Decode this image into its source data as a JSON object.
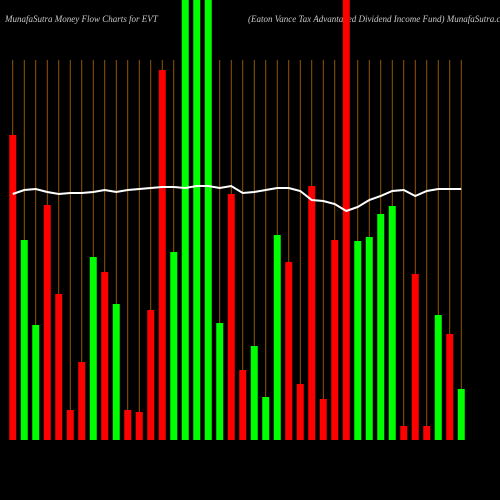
{
  "chart_data": {
    "type": "bar",
    "title": "MunafaSutra  Money Flow  Charts for EVT",
    "subtitle": "(Eaton  Vance   Tax Advantaged Dividend Income   Fund) MunafaSutra.com",
    "categories": [
      null,
      null,
      null,
      null,
      null,
      null,
      null,
      null,
      null,
      null,
      null,
      null,
      null,
      null,
      null,
      null,
      null,
      null,
      null,
      null,
      null,
      null,
      null,
      null,
      null,
      null,
      null,
      null,
      null,
      null,
      null,
      null,
      null,
      null,
      null,
      null,
      null,
      null,
      null,
      null
    ],
    "ylim": [
      0,
      440
    ],
    "grid": true,
    "grid_color": "#b86a00",
    "series": [
      {
        "kind": "bar",
        "values": [
          305,
          200,
          115,
          235,
          146,
          30,
          78,
          183,
          168,
          136,
          30,
          28,
          130,
          370,
          188,
          440,
          440,
          440,
          117,
          246,
          70,
          94,
          43,
          205,
          178,
          56,
          254,
          41,
          200,
          440,
          199,
          203,
          226,
          234,
          14,
          166,
          14,
          125,
          106,
          51
        ],
        "colors": [
          "#ff0000",
          "#00ff00",
          "#00ff00",
          "#ff0000",
          "#ff0000",
          "#ff0000",
          "#ff0000",
          "#00ff00",
          "#ff0000",
          "#00ff00",
          "#ff0000",
          "#ff0000",
          "#ff0000",
          "#ff0000",
          "#00ff00",
          "#00ff00",
          "#00ff00",
          "#00ff00",
          "#00ff00",
          "#ff0000",
          "#ff0000",
          "#00ff00",
          "#00ff00",
          "#00ff00",
          "#ff0000",
          "#ff0000",
          "#ff0000",
          "#ff0000",
          "#ff0000",
          "#ff0000",
          "#00ff00",
          "#00ff00",
          "#00ff00",
          "#00ff00",
          "#ff0000",
          "#ff0000",
          "#ff0000",
          "#00ff00",
          "#ff0000",
          "#00ff00"
        ]
      },
      {
        "kind": "line",
        "color": "#ffffff",
        "values": [
          246,
          250,
          251,
          248,
          246,
          247,
          247,
          248,
          250,
          248,
          250,
          251,
          252,
          253,
          253,
          252,
          254,
          254,
          252,
          254,
          247,
          248,
          250,
          252,
          252,
          249,
          240,
          239,
          236,
          229,
          233,
          240,
          244,
          249,
          250,
          244,
          249,
          251,
          251,
          251
        ]
      }
    ]
  }
}
